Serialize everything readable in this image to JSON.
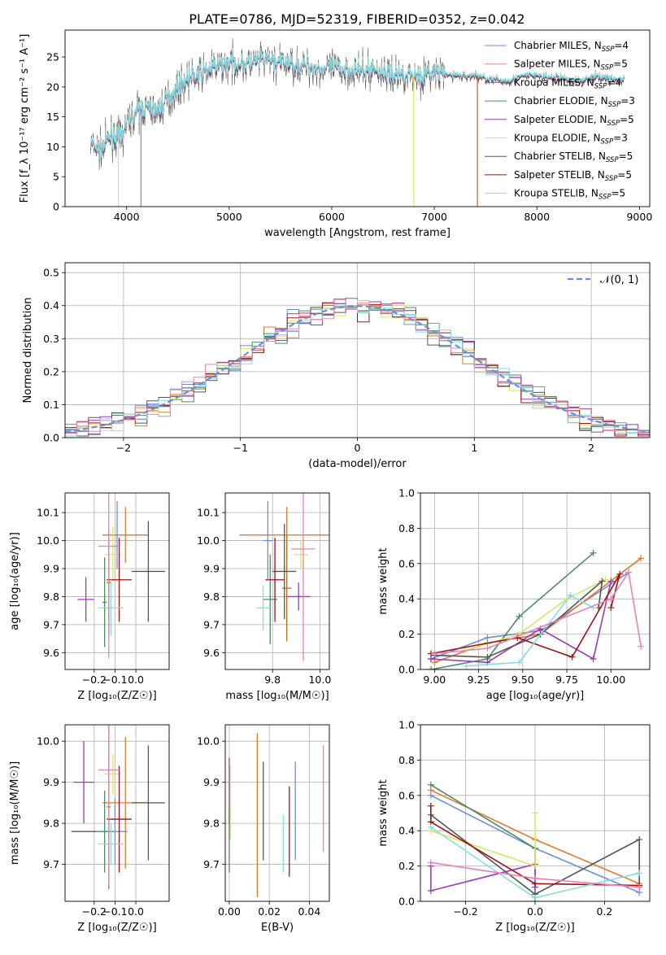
{
  "figure_title": "PLATE=0786, MJD=52319, FIBERID=0352, z=0.042",
  "colors": {
    "c0": "#6a8fd8",
    "c1": "#e07a2e",
    "c2": "#c06a10",
    "c3": "#4e8a64",
    "c4": "#9b39b8",
    "c5": "#d4e860",
    "c6": "#555555",
    "c7": "#a01212",
    "c8": "#86dce0",
    "c9": "#e882b4"
  },
  "chart_data": [
    {
      "id": "spectrum",
      "type": "line",
      "xlabel": "wavelength [Angstrom, rest frame]",
      "ylabel": "Flux [f_λ 10⁻¹⁷ erg cm⁻² s⁻¹ A⁻¹]",
      "xlim": [
        3400,
        9100
      ],
      "ylim": [
        0,
        29.5
      ],
      "xticks": [
        4000,
        5000,
        6000,
        7000,
        8000,
        9000
      ],
      "yticks": [
        0,
        5,
        10,
        15,
        20,
        25
      ],
      "legend_position": "top-right",
      "legend": [
        {
          "base": "Chabrier MILES, N",
          "sub": "SSP",
          "tail": "=4",
          "color": "#6a8fd8"
        },
        {
          "base": "Salpeter MILES, N",
          "sub": "SSP",
          "tail": "=5",
          "color": "#e882b4"
        },
        {
          "base": "Kroupa MILES, N",
          "sub": "SSP",
          "tail": "=4",
          "color": "#c06a10"
        },
        {
          "base": "Chabrier ELODIE, N",
          "sub": "SSP",
          "tail": "=3",
          "color": "#4e8a64"
        },
        {
          "base": "Salpeter ELODIE, N",
          "sub": "SSP",
          "tail": "=5",
          "color": "#9b39b8"
        },
        {
          "base": "Kroupa ELODIE, N",
          "sub": "SSP",
          "tail": "=3",
          "color": "#d4e860"
        },
        {
          "base": "Chabrier STELIB, N",
          "sub": "SSP",
          "tail": "=5",
          "color": "#555555"
        },
        {
          "base": "Salpeter STELIB, N",
          "sub": "SSP",
          "tail": "=5",
          "color": "#a01212"
        },
        {
          "base": "Kroupa STELIB, N",
          "sub": "SSP",
          "tail": "=5",
          "color": "#86dce0"
        }
      ],
      "continuum": [
        [
          3650,
          10.5
        ],
        [
          3750,
          9.5
        ],
        [
          3850,
          12
        ],
        [
          3950,
          11.5
        ],
        [
          4000,
          14
        ],
        [
          4100,
          16
        ],
        [
          4200,
          16.5
        ],
        [
          4300,
          16
        ],
        [
          4400,
          18
        ],
        [
          4500,
          20
        ],
        [
          4600,
          21.5
        ],
        [
          4700,
          22
        ],
        [
          4800,
          23
        ],
        [
          4900,
          23.5
        ],
        [
          5000,
          24
        ],
        [
          5100,
          24
        ],
        [
          5200,
          23.8
        ],
        [
          5300,
          24.5
        ],
        [
          5400,
          24.5
        ],
        [
          5500,
          24
        ],
        [
          5600,
          24
        ],
        [
          5700,
          23.5
        ],
        [
          5800,
          23.5
        ],
        [
          5900,
          23
        ],
        [
          6000,
          23.2
        ],
        [
          6100,
          23
        ],
        [
          6200,
          23
        ],
        [
          6300,
          22.5
        ],
        [
          6400,
          23
        ],
        [
          6500,
          22.5
        ],
        [
          6600,
          22
        ],
        [
          6700,
          22.2
        ],
        [
          6800,
          22
        ],
        [
          6900,
          22
        ],
        [
          7000,
          22.5
        ],
        [
          7100,
          22
        ],
        [
          7200,
          22
        ],
        [
          7300,
          21.8
        ],
        [
          7400,
          22
        ],
        [
          7500,
          21.5
        ],
        [
          7600,
          21.2
        ],
        [
          7700,
          21
        ],
        [
          7800,
          21.5
        ],
        [
          7900,
          22
        ],
        [
          8000,
          22
        ],
        [
          8100,
          21.5
        ],
        [
          8200,
          21.7
        ],
        [
          8300,
          21.3
        ],
        [
          8400,
          21
        ],
        [
          8500,
          21.5
        ],
        [
          8600,
          21.8
        ],
        [
          8700,
          21.5
        ],
        [
          8800,
          21.2
        ]
      ],
      "dropouts": [
        {
          "x": 3920,
          "color": "#d4e860"
        },
        {
          "x": 4140,
          "color": "#6a8fd8"
        },
        {
          "x": 6800,
          "color": "#d4e860"
        },
        {
          "x": 7420,
          "color": "#c06a10"
        }
      ]
    },
    {
      "id": "residuals",
      "type": "histogram",
      "xlabel": "(data-model)/error",
      "ylabel": "Normed distribution",
      "xlim": [
        -2.5,
        2.5
      ],
      "ylim": [
        0,
        0.53
      ],
      "xticks": [
        -2,
        -1,
        0,
        1,
        2
      ],
      "yticks": [
        0.0,
        0.1,
        0.2,
        0.3,
        0.4,
        0.5
      ],
      "grid": true,
      "legend_position": "top-right",
      "legend": [
        {
          "label": "𝒩(0, 1)",
          "color": "#6a8fd8",
          "style": "dashed"
        }
      ],
      "bin_width": 0.1
    },
    {
      "id": "age-vs-Z",
      "type": "errorbar",
      "xlabel": "Z [log₁₀(Z/Z☉)]",
      "ylabel": "age  [log₁₀(age/yr)]",
      "xlim": [
        -0.34,
        0.16
      ],
      "ylim": [
        9.54,
        10.17
      ],
      "xticks": [
        -0.2,
        -0.1,
        0.0
      ],
      "yticks": [
        9.6,
        9.7,
        9.8,
        9.9,
        10.0,
        10.1
      ],
      "points": [
        {
          "x": -0.09,
          "xerr": 0.02,
          "y": 10.02,
          "yerr": 0.12,
          "color": "#6a8fd8"
        },
        {
          "x": -0.05,
          "xerr": 0.11,
          "y": 10.02,
          "yerr": 0.1,
          "color": "#e07a2e"
        },
        {
          "x": -0.13,
          "xerr": 0.01,
          "y": 9.85,
          "yerr": 0.19,
          "color": "#c06a10"
        },
        {
          "x": -0.15,
          "xerr": 0.01,
          "y": 9.78,
          "yerr": 0.16,
          "color": "#4e8a64"
        },
        {
          "x": -0.24,
          "xerr": 0.04,
          "y": 9.79,
          "yerr": 0.08,
          "color": "#9b39b8"
        },
        {
          "x": -0.11,
          "xerr": 0.04,
          "y": 9.95,
          "yerr": 0.1,
          "color": "#d4e860"
        },
        {
          "x": 0.06,
          "xerr": 0.08,
          "y": 9.89,
          "yerr": 0.18,
          "color": "#555555"
        },
        {
          "x": -0.08,
          "xerr": 0.06,
          "y": 9.86,
          "yerr": 0.15,
          "color": "#a01212"
        },
        {
          "x": -0.12,
          "xerr": 0.06,
          "y": 9.76,
          "yerr": 0.1,
          "color": "#86dce0"
        },
        {
          "x": -0.13,
          "xerr": 0.05,
          "y": 9.98,
          "yerr": 0.4,
          "color": "#e882b4"
        }
      ]
    },
    {
      "id": "age-vs-mass",
      "type": "errorbar",
      "xlabel": "mass [log₁₀(M/M☉)]",
      "ylabel": "",
      "xlim": [
        9.6,
        10.04
      ],
      "ylim": [
        9.54,
        10.17
      ],
      "xticks": [
        9.8,
        10.0
      ],
      "yticks": [
        9.6,
        9.7,
        9.8,
        9.9,
        10.0,
        10.1
      ],
      "points": [
        {
          "x": 9.78,
          "xerr": 0.02,
          "y": 10.0,
          "yerr": 0.14,
          "color": "#6a8fd8"
        },
        {
          "x": 9.86,
          "xerr": 0.2,
          "y": 10.02,
          "yerr": 0.1,
          "color": "#e07a2e"
        },
        {
          "x": 9.86,
          "xerr": 0.02,
          "y": 9.83,
          "yerr": 0.19,
          "color": "#c06a10"
        },
        {
          "x": 9.79,
          "xerr": 0.03,
          "y": 9.79,
          "yerr": 0.16,
          "color": "#4e8a64"
        },
        {
          "x": 9.91,
          "xerr": 0.05,
          "y": 9.8,
          "yerr": 0.05,
          "color": "#9b39b8"
        },
        {
          "x": 9.92,
          "xerr": 0.03,
          "y": 9.95,
          "yerr": 0.05,
          "color": "#d4e860"
        },
        {
          "x": 9.85,
          "xerr": 0.05,
          "y": 9.89,
          "yerr": 0.17,
          "color": "#555555"
        },
        {
          "x": 9.81,
          "xerr": 0.04,
          "y": 9.86,
          "yerr": 0.15,
          "color": "#a01212"
        },
        {
          "x": 9.76,
          "xerr": 0.03,
          "y": 9.76,
          "yerr": 0.08,
          "color": "#86dce0"
        },
        {
          "x": 9.93,
          "xerr": 0.05,
          "y": 9.97,
          "yerr": 0.4,
          "color": "#e882b4"
        }
      ]
    },
    {
      "id": "weight-vs-age",
      "type": "line",
      "xlabel": "age  [log₁₀(age/yr)]",
      "ylabel": "mass weight",
      "xlim": [
        8.92,
        10.22
      ],
      "ylim": [
        0,
        1.0
      ],
      "xticks": [
        9.0,
        9.25,
        9.5,
        9.75,
        10.0
      ],
      "ytick_labels": [
        "0.0",
        "0.2",
        "0.4",
        "0.6",
        "0.8",
        "1.0"
      ],
      "grid": true,
      "series": [
        {
          "color": "#6a8fd8",
          "x": [
            8.98,
            9.3,
            9.6,
            10.1
          ],
          "y": [
            0.06,
            0.18,
            0.22,
            0.55
          ]
        },
        {
          "color": "#e07a2e",
          "x": [
            9.0,
            9.3,
            9.6,
            10.17
          ],
          "y": [
            0.04,
            0.15,
            0.2,
            0.63
          ]
        },
        {
          "color": "#4e8a64",
          "x": [
            8.98,
            9.3,
            9.48,
            9.9
          ],
          "y": [
            0.0,
            0.06,
            0.3,
            0.66
          ]
        },
        {
          "color": "#9b39b8",
          "x": [
            8.98,
            9.3,
            9.6,
            9.9,
            10.0
          ],
          "y": [
            0.06,
            0.04,
            0.23,
            0.06,
            0.5
          ]
        },
        {
          "color": "#d4e860",
          "x": [
            9.18,
            9.48,
            9.75,
            9.97
          ],
          "y": [
            0.11,
            0.2,
            0.4,
            0.51
          ]
        },
        {
          "color": "#555555",
          "x": [
            9.0,
            9.3,
            9.6,
            9.95,
            9.93
          ],
          "y": [
            0.08,
            0.07,
            0.2,
            0.5,
            0.35
          ]
        },
        {
          "color": "#a01212",
          "x": [
            8.98,
            9.47,
            9.78,
            10.05,
            10.0
          ],
          "y": [
            0.09,
            0.18,
            0.07,
            0.54,
            0.35
          ]
        },
        {
          "color": "#86dce0",
          "x": [
            9.18,
            9.48,
            9.77,
            9.9
          ],
          "y": [
            0.02,
            0.04,
            0.42,
            0.35
          ]
        },
        {
          "color": "#e882b4",
          "x": [
            9.0,
            9.3,
            10.0,
            10.1,
            10.17
          ],
          "y": [
            0.09,
            0.12,
            0.4,
            0.55,
            0.13
          ]
        }
      ]
    },
    {
      "id": "mass-vs-Z",
      "type": "errorbar",
      "xlabel": "Z [log₁₀(Z/Z☉)]",
      "ylabel": "mass [log₁₀(M/M☉)]",
      "xlim": [
        -0.34,
        0.16
      ],
      "ylim": [
        9.61,
        10.04
      ],
      "xticks": [
        -0.2,
        -0.1,
        0.0
      ],
      "yticks": [
        9.7,
        9.8,
        9.9,
        10.0
      ],
      "points": [
        {
          "x": -0.1,
          "xerr": 0.06,
          "y": 9.78,
          "yerr": 0.08,
          "color": "#6a8fd8"
        },
        {
          "x": -0.05,
          "xerr": 0.11,
          "y": 9.85,
          "yerr": 0.16,
          "color": "#e07a2e"
        },
        {
          "x": -0.13,
          "xerr": 0.01,
          "y": 9.84,
          "yerr": 0.2,
          "color": "#c06a10"
        },
        {
          "x": -0.15,
          "xerr": 0.04,
          "y": 9.78,
          "yerr": 0.1,
          "color": "#4e8a64"
        },
        {
          "x": -0.25,
          "xerr": 0.05,
          "y": 9.9,
          "yerr": 0.1,
          "color": "#9b39b8"
        },
        {
          "x": -0.11,
          "xerr": 0.04,
          "y": 9.92,
          "yerr": 0.05,
          "color": "#d4e860"
        },
        {
          "x": 0.06,
          "xerr": 0.08,
          "y": 9.85,
          "yerr": 0.14,
          "color": "#555555"
        },
        {
          "x": -0.08,
          "xerr": 0.06,
          "y": 9.81,
          "yerr": 0.13,
          "color": "#a01212"
        },
        {
          "x": -0.12,
          "xerr": 0.06,
          "y": 9.75,
          "yerr": 0.05,
          "color": "#86dce0"
        },
        {
          "x": -0.13,
          "xerr": 0.05,
          "y": 9.93,
          "yerr": 0.28,
          "color": "#e882b4"
        },
        {
          "x": -0.25,
          "xerr": 0.06,
          "y": 9.78,
          "yerr": 0.0,
          "color": "#555555"
        }
      ]
    },
    {
      "id": "mass-vs-EBV",
      "type": "errorbar",
      "xlabel": "E(B-V)",
      "ylabel": "",
      "xlim": [
        -0.002,
        0.05
      ],
      "ylim": [
        9.61,
        10.04
      ],
      "xticks": [
        0.0,
        0.02,
        0.04
      ],
      "xtick_labels": [
        "0.00",
        "0.02",
        "0.04"
      ],
      "yticks": [
        9.7,
        9.8,
        9.9,
        10.0
      ],
      "points": [
        {
          "x": 0.0,
          "xerr": 0,
          "y": 9.88,
          "yerr": 0.08,
          "color": "#9b39b8"
        },
        {
          "x": 0.0005,
          "xerr": 0,
          "y": 9.85,
          "yerr": 0.09,
          "color": "#d4e860"
        },
        {
          "x": 0.0,
          "xerr": 0,
          "y": 9.76,
          "yerr": 0.08,
          "color": "#4e8a64"
        },
        {
          "x": 0.014,
          "xerr": 0,
          "y": 9.82,
          "yerr": 0.2,
          "color": "#e07a2e"
        },
        {
          "x": 0.017,
          "xerr": 0,
          "y": 9.83,
          "yerr": 0.12,
          "color": "#555555"
        },
        {
          "x": 0.027,
          "xerr": 0,
          "y": 9.75,
          "yerr": 0.07,
          "color": "#86dce0"
        },
        {
          "x": 0.03,
          "xerr": 0,
          "y": 9.78,
          "yerr": 0.11,
          "color": "#a01212"
        },
        {
          "x": 0.033,
          "xerr": 0,
          "y": 9.83,
          "yerr": 0.12,
          "color": "#6a8fd8"
        },
        {
          "x": 0.047,
          "xerr": 0,
          "y": 9.86,
          "yerr": 0.13,
          "color": "#e882b4"
        }
      ]
    },
    {
      "id": "weight-vs-Z",
      "type": "line",
      "xlabel": "Z [log₁₀(Z/Z☉)]",
      "ylabel": "mass weight",
      "xlim": [
        -0.33,
        0.33
      ],
      "ylim": [
        0,
        1.0
      ],
      "xticks": [
        -0.2,
        0.0,
        0.2
      ],
      "xtick_labels": [
        "−0.2",
        "0.0",
        "0.2"
      ],
      "ytick_labels": [
        "0.0",
        "0.2",
        "0.4",
        "0.6",
        "0.8",
        "1.0"
      ],
      "grid": true,
      "series": [
        {
          "color": "#6a8fd8",
          "x": [
            -0.3,
            0.0,
            0.3
          ],
          "y": [
            0.6,
            0.3,
            0.05
          ]
        },
        {
          "color": "#e07a2e",
          "x": [
            -0.3,
            0.0,
            0.3
          ],
          "y": [
            0.63,
            0.35,
            0.1
          ]
        },
        {
          "color": "#4e8a64",
          "x": [
            -0.3,
            0.0,
            0.0
          ],
          "y": [
            0.66,
            0.3,
            0.0
          ]
        },
        {
          "color": "#9b39b8",
          "x": [
            -0.3,
            -0.3,
            0.0,
            0.0
          ],
          "y": [
            0.2,
            0.06,
            0.21,
            0.08
          ]
        },
        {
          "color": "#d4e860",
          "x": [
            -0.3,
            0.0,
            0.0
          ],
          "y": [
            0.4,
            0.2,
            0.5
          ]
        },
        {
          "color": "#555555",
          "x": [
            -0.3,
            0.0,
            0.3,
            0.3
          ],
          "y": [
            0.49,
            0.04,
            0.35,
            0.08
          ]
        },
        {
          "color": "#a01212",
          "x": [
            -0.3,
            -0.3,
            0.0,
            0.3
          ],
          "y": [
            0.54,
            0.45,
            0.1,
            0.09
          ]
        },
        {
          "color": "#86dce0",
          "x": [
            -0.3,
            0.0,
            0.3
          ],
          "y": [
            0.42,
            0.02,
            0.16
          ]
        },
        {
          "color": "#e882b4",
          "x": [
            -0.3,
            0.0,
            0.3
          ],
          "y": [
            0.22,
            0.13,
            0.08
          ]
        }
      ]
    }
  ]
}
